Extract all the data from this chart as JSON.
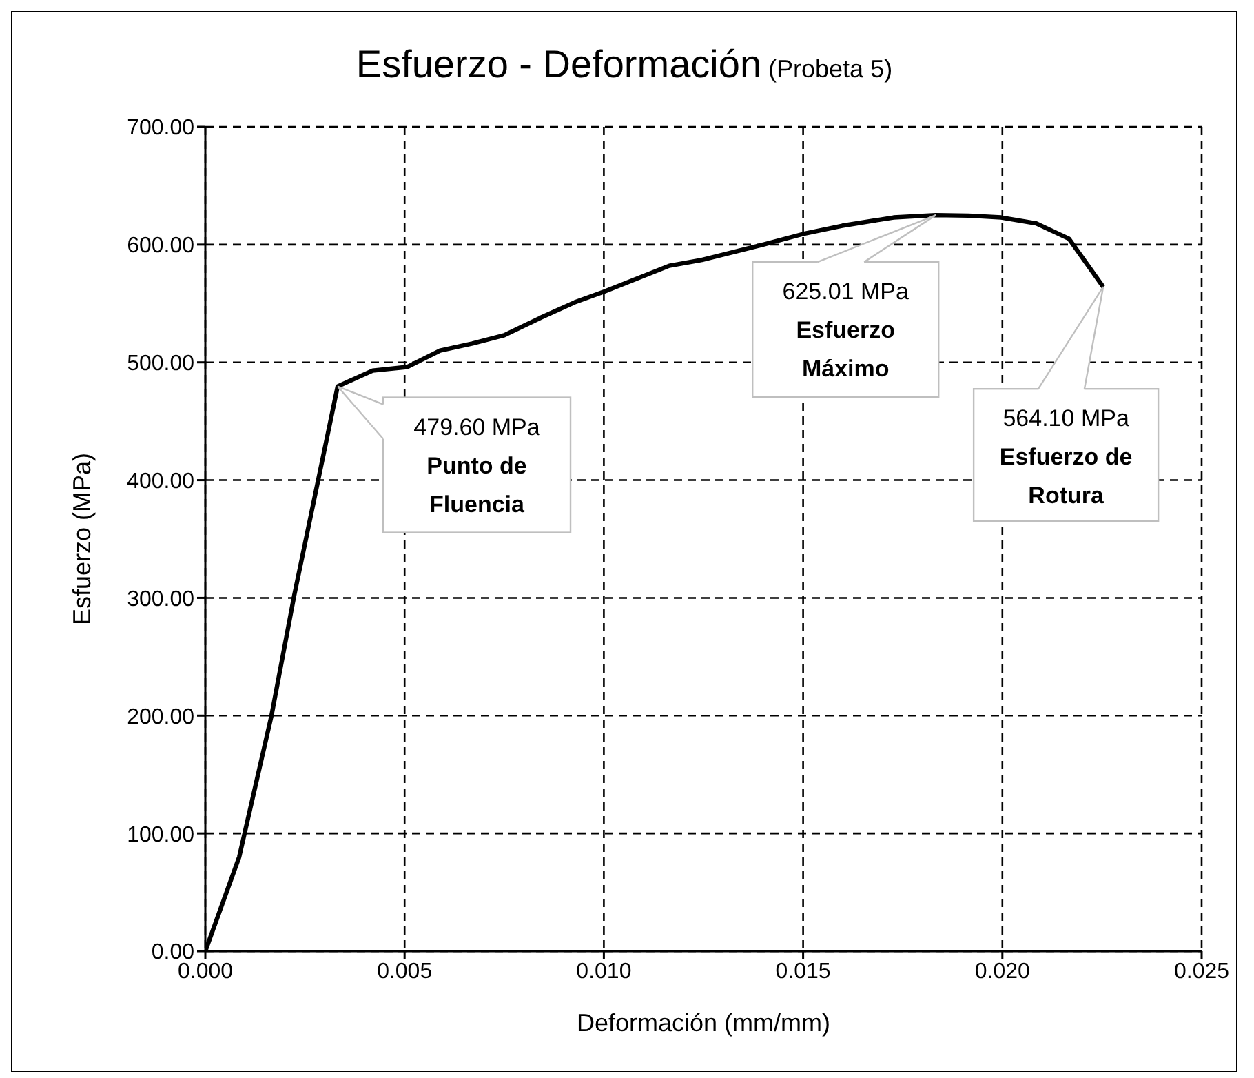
{
  "chart_data": {
    "type": "line",
    "title": "Esfuerzo - Deformación",
    "subtitle": "(Probeta 5)",
    "xlabel": "Deformación (mm/mm)",
    "ylabel": "Esfuerzo (MPa)",
    "x": [
      0,
      0.00085,
      0.00166,
      0.00223,
      0.00332,
      0.0042,
      0.00506,
      0.00589,
      0.0067,
      0.0075,
      0.00842,
      0.00927,
      0.01,
      0.01164,
      0.01246,
      0.014,
      0.015,
      0.01598,
      0.01727,
      0.01833,
      0.01915,
      0.01997,
      0.02085,
      0.02167,
      0.02253
    ],
    "series": [
      {
        "color": "#000000",
        "values": [
          0,
          80,
          200,
          302,
          479.6,
          493,
          496,
          510,
          516,
          523,
          538,
          551,
          560,
          582,
          587,
          600,
          609,
          616,
          623,
          625.01,
          624.6,
          623,
          618,
          605,
          564.1
        ]
      }
    ],
    "xlim": [
      0,
      0.025
    ],
    "ylim": [
      0,
      700
    ],
    "xticks": [
      {
        "value": 0,
        "label": "0.000"
      },
      {
        "value": 0.005,
        "label": "0.005"
      },
      {
        "value": 0.01,
        "label": "0.010"
      },
      {
        "value": 0.015,
        "label": "0.015"
      },
      {
        "value": 0.02,
        "label": "0.020"
      },
      {
        "value": 0.025,
        "label": "0.025"
      }
    ],
    "yticks": [
      {
        "value": 0,
        "label": "0.00"
      },
      {
        "value": 100,
        "label": "100.00"
      },
      {
        "value": 200,
        "label": "200.00"
      },
      {
        "value": 300,
        "label": "300.00"
      },
      {
        "value": 400,
        "label": "400.00"
      },
      {
        "value": 500,
        "label": "500.00"
      },
      {
        "value": 600,
        "label": "600.00"
      },
      {
        "value": 700,
        "label": "700.00"
      }
    ],
    "grid": true,
    "marker": "none",
    "line_style": "solid",
    "annotations": [
      {
        "text": "479.60 MPa\nPunto de\nFluencia",
        "x": 0.00332,
        "y": 479.6
      },
      {
        "text": "625.01 MPa\nEsfuerzo\nMáximo",
        "x": 0.01833,
        "y": 625.01
      },
      {
        "text": "564.10 MPa\nEsfuerzo de\nRotura",
        "x": 0.02253,
        "y": 564.1
      }
    ]
  }
}
